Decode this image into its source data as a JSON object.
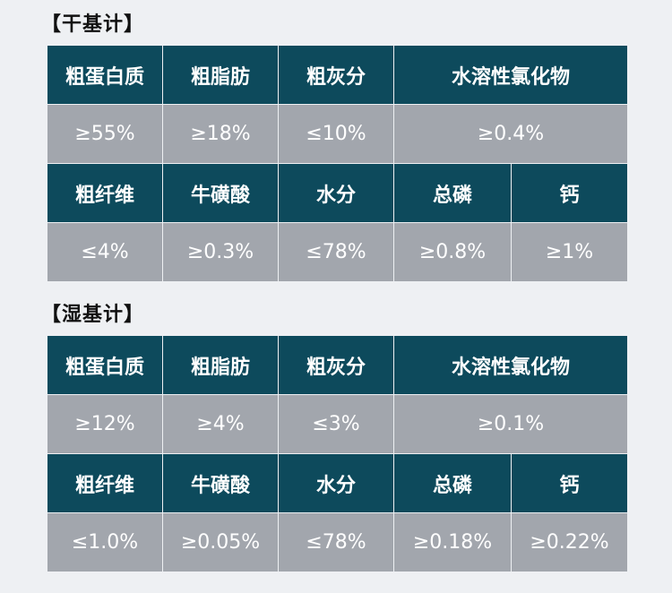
{
  "sections": [
    {
      "title": "【干基计】",
      "row1_headers": [
        "粗蛋白质",
        "粗脂肪",
        "粗灰分",
        "水溶性氯化物"
      ],
      "row1_values": [
        "≥55%",
        "≥18%",
        "≤10%",
        "≥0.4%"
      ],
      "row2_headers": [
        "粗纤维",
        "牛磺酸",
        "水分",
        "总磷",
        "钙"
      ],
      "row2_values": [
        "≤4%",
        "≥0.3%",
        "≤78%",
        "≥0.8%",
        "≥1%"
      ]
    },
    {
      "title": "【湿基计】",
      "row1_headers": [
        "粗蛋白质",
        "粗脂肪",
        "粗灰分",
        "水溶性氯化物"
      ],
      "row1_values": [
        "≥12%",
        "≥4%",
        "≤3%",
        "≥0.1%"
      ],
      "row2_headers": [
        "粗纤维",
        "牛磺酸",
        "水分",
        "总磷",
        "钙"
      ],
      "row2_values": [
        "≤1.0%",
        "≥0.05%",
        "≤78%",
        "≥0.18%",
        "≥0.22%"
      ]
    }
  ],
  "colors": {
    "header_bg": "#0d4a5c",
    "value_bg": "#a2a6ad",
    "page_bg": "#eef0f3"
  }
}
